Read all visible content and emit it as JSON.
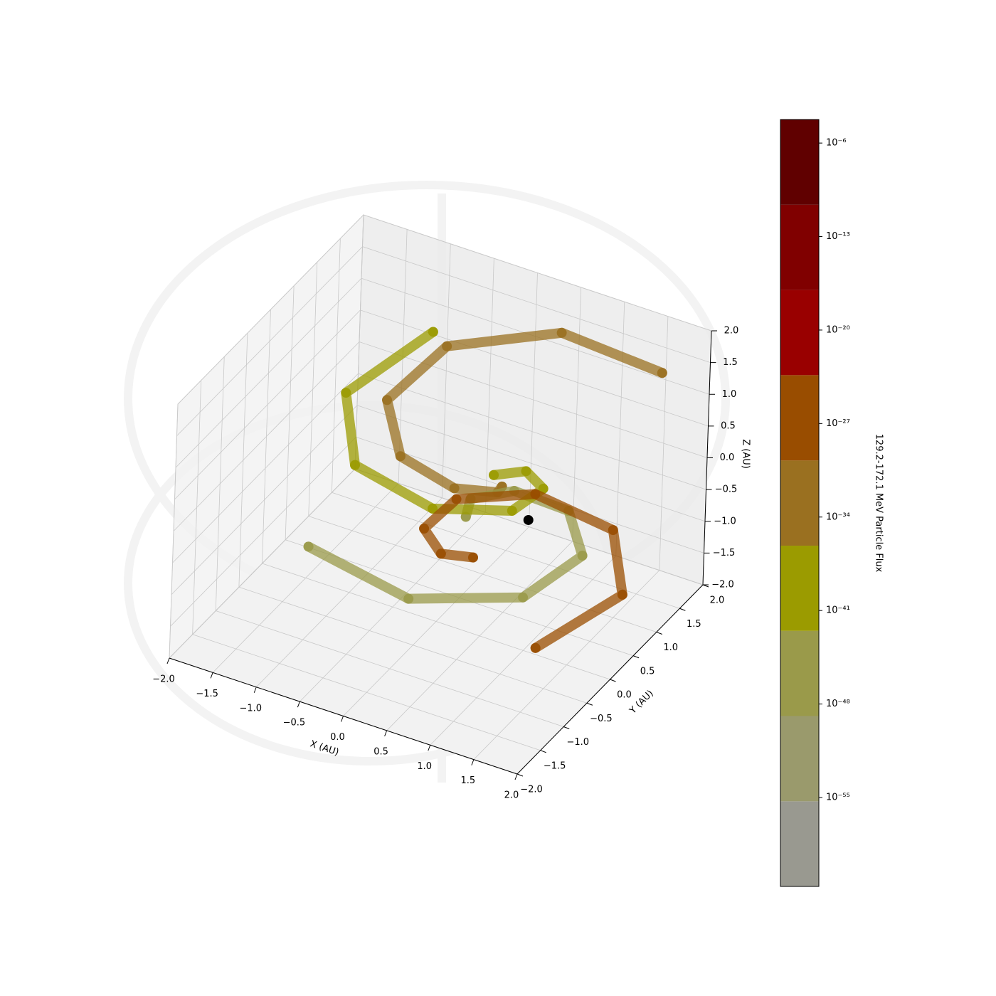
{
  "chart_data": {
    "type": "scatter3d",
    "xlabel": "X (AU)",
    "ylabel": "Y (AU)",
    "zlabel": "Z (AU)",
    "xlim": [
      -2,
      2
    ],
    "ylim": [
      -2,
      2
    ],
    "zlim": [
      -2,
      2
    ],
    "xticks": [
      {
        "value": -2,
        "label": "−2.0"
      },
      {
        "value": -1.5,
        "label": "−1.5"
      },
      {
        "value": -1,
        "label": "−1.0"
      },
      {
        "value": -0.5,
        "label": "−0.5"
      },
      {
        "value": 0,
        "label": "0.0"
      },
      {
        "value": 0.5,
        "label": "0.5"
      },
      {
        "value": 1,
        "label": "1.0"
      },
      {
        "value": 1.5,
        "label": "1.5"
      },
      {
        "value": 2,
        "label": "2.0"
      }
    ],
    "yticks": [
      {
        "value": -2,
        "label": "−2.0"
      },
      {
        "value": -1.5,
        "label": "−1.5"
      },
      {
        "value": -1,
        "label": "−1.0"
      },
      {
        "value": -0.5,
        "label": "−0.5"
      },
      {
        "value": 0,
        "label": "0.0"
      },
      {
        "value": 0.5,
        "label": "0.5"
      },
      {
        "value": 1,
        "label": "1.0"
      },
      {
        "value": 1.5,
        "label": "1.5"
      },
      {
        "value": 2,
        "label": "2.0"
      }
    ],
    "zticks": [
      {
        "value": -2,
        "label": "−2.0"
      },
      {
        "value": -1.5,
        "label": "−1.5"
      },
      {
        "value": -1,
        "label": "−1.0"
      },
      {
        "value": -0.5,
        "label": "−0.5"
      },
      {
        "value": 0,
        "label": "0.0"
      },
      {
        "value": 0.5,
        "label": "0.5"
      },
      {
        "value": 1,
        "label": "1.0"
      },
      {
        "value": 1.5,
        "label": "1.5"
      },
      {
        "value": 2,
        "label": "2.0"
      }
    ],
    "grid": true,
    "series": [
      {
        "color": "#9a7020",
        "x": [
          0.55,
          0.66,
          0.35,
          -0.29,
          -0.79,
          -0.63,
          0.35,
          1.66
        ],
        "y": [
          0.29,
          -0.02,
          -0.38,
          -0.35,
          0.29,
          1.27,
          1.9,
          1.6
        ],
        "z": [
          0.16,
          0.35,
          0.54,
          0.73,
          0.91,
          1.1,
          1.29,
          1.48
        ]
      },
      {
        "color": "#9a9a4a",
        "x": [
          0.15,
          0.04,
          0.35,
          0.99,
          1.49,
          1.33,
          0.35,
          -0.96
        ],
        "y": [
          0.29,
          0.6,
          0.96,
          0.93,
          0.29,
          -0.69,
          -1.32,
          -1.02
        ],
        "z": [
          -0.5,
          -0.5,
          -0.5,
          -0.5,
          -0.5,
          -0.5,
          -0.5,
          -0.5
        ]
      },
      {
        "color": "#9b9b00",
        "x": [
          0.35,
          0.66,
          1.02,
          1.0,
          0.35,
          -0.63,
          -1.26,
          -0.96
        ],
        "y": [
          0.49,
          0.6,
          0.29,
          -0.35,
          -0.85,
          -0.69,
          0.29,
          1.6
        ],
        "z": [
          0.1,
          0.22,
          0.34,
          0.46,
          0.57,
          0.69,
          0.81,
          0.93
        ]
      },
      {
        "color": "#994d00",
        "x": [
          0.35,
          0.04,
          -0.32,
          -0.29,
          0.35,
          1.33,
          1.96,
          1.66
        ],
        "y": [
          0.09,
          -0.02,
          0.29,
          0.93,
          1.43,
          1.27,
          0.29,
          -1.02
        ],
        "z": [
          -0.9,
          -0.9,
          -0.9,
          -0.9,
          -0.9,
          -0.9,
          -0.9,
          -0.9
        ]
      }
    ],
    "observer": {
      "color": "#000000",
      "x": 0.98,
      "y": 0.06,
      "z": 0
    },
    "colorbar": {
      "label": "129.2-172.1 MeV Particle Flux",
      "log": true,
      "boundaries": [
        2.2e-62,
        5.2e-56,
        1.26e-49,
        3e-43,
        7.2e-37,
        1.7e-30,
        4.2e-24,
        1e-17,
        2.4e-11,
        5.8e-05
      ],
      "colors": [
        "#999990",
        "#9a9a6c",
        "#9a9a4a",
        "#9b9b00",
        "#9a7020",
        "#994d00",
        "#990000",
        "#800000",
        "#600000"
      ],
      "ticks": [
        {
          "value": 1e-55,
          "label": "10⁻⁵⁵"
        },
        {
          "value": 1e-48,
          "label": "10⁻⁴⁸"
        },
        {
          "value": 1e-41,
          "label": "10⁻⁴¹"
        },
        {
          "value": 1e-34,
          "label": "10⁻³⁴"
        },
        {
          "value": 1e-27,
          "label": "10⁻²⁷"
        },
        {
          "value": 1e-20,
          "label": "10⁻²⁰"
        },
        {
          "value": 1e-13,
          "label": "10⁻¹³"
        },
        {
          "value": 1e-06,
          "label": "10⁻⁶"
        }
      ]
    }
  }
}
